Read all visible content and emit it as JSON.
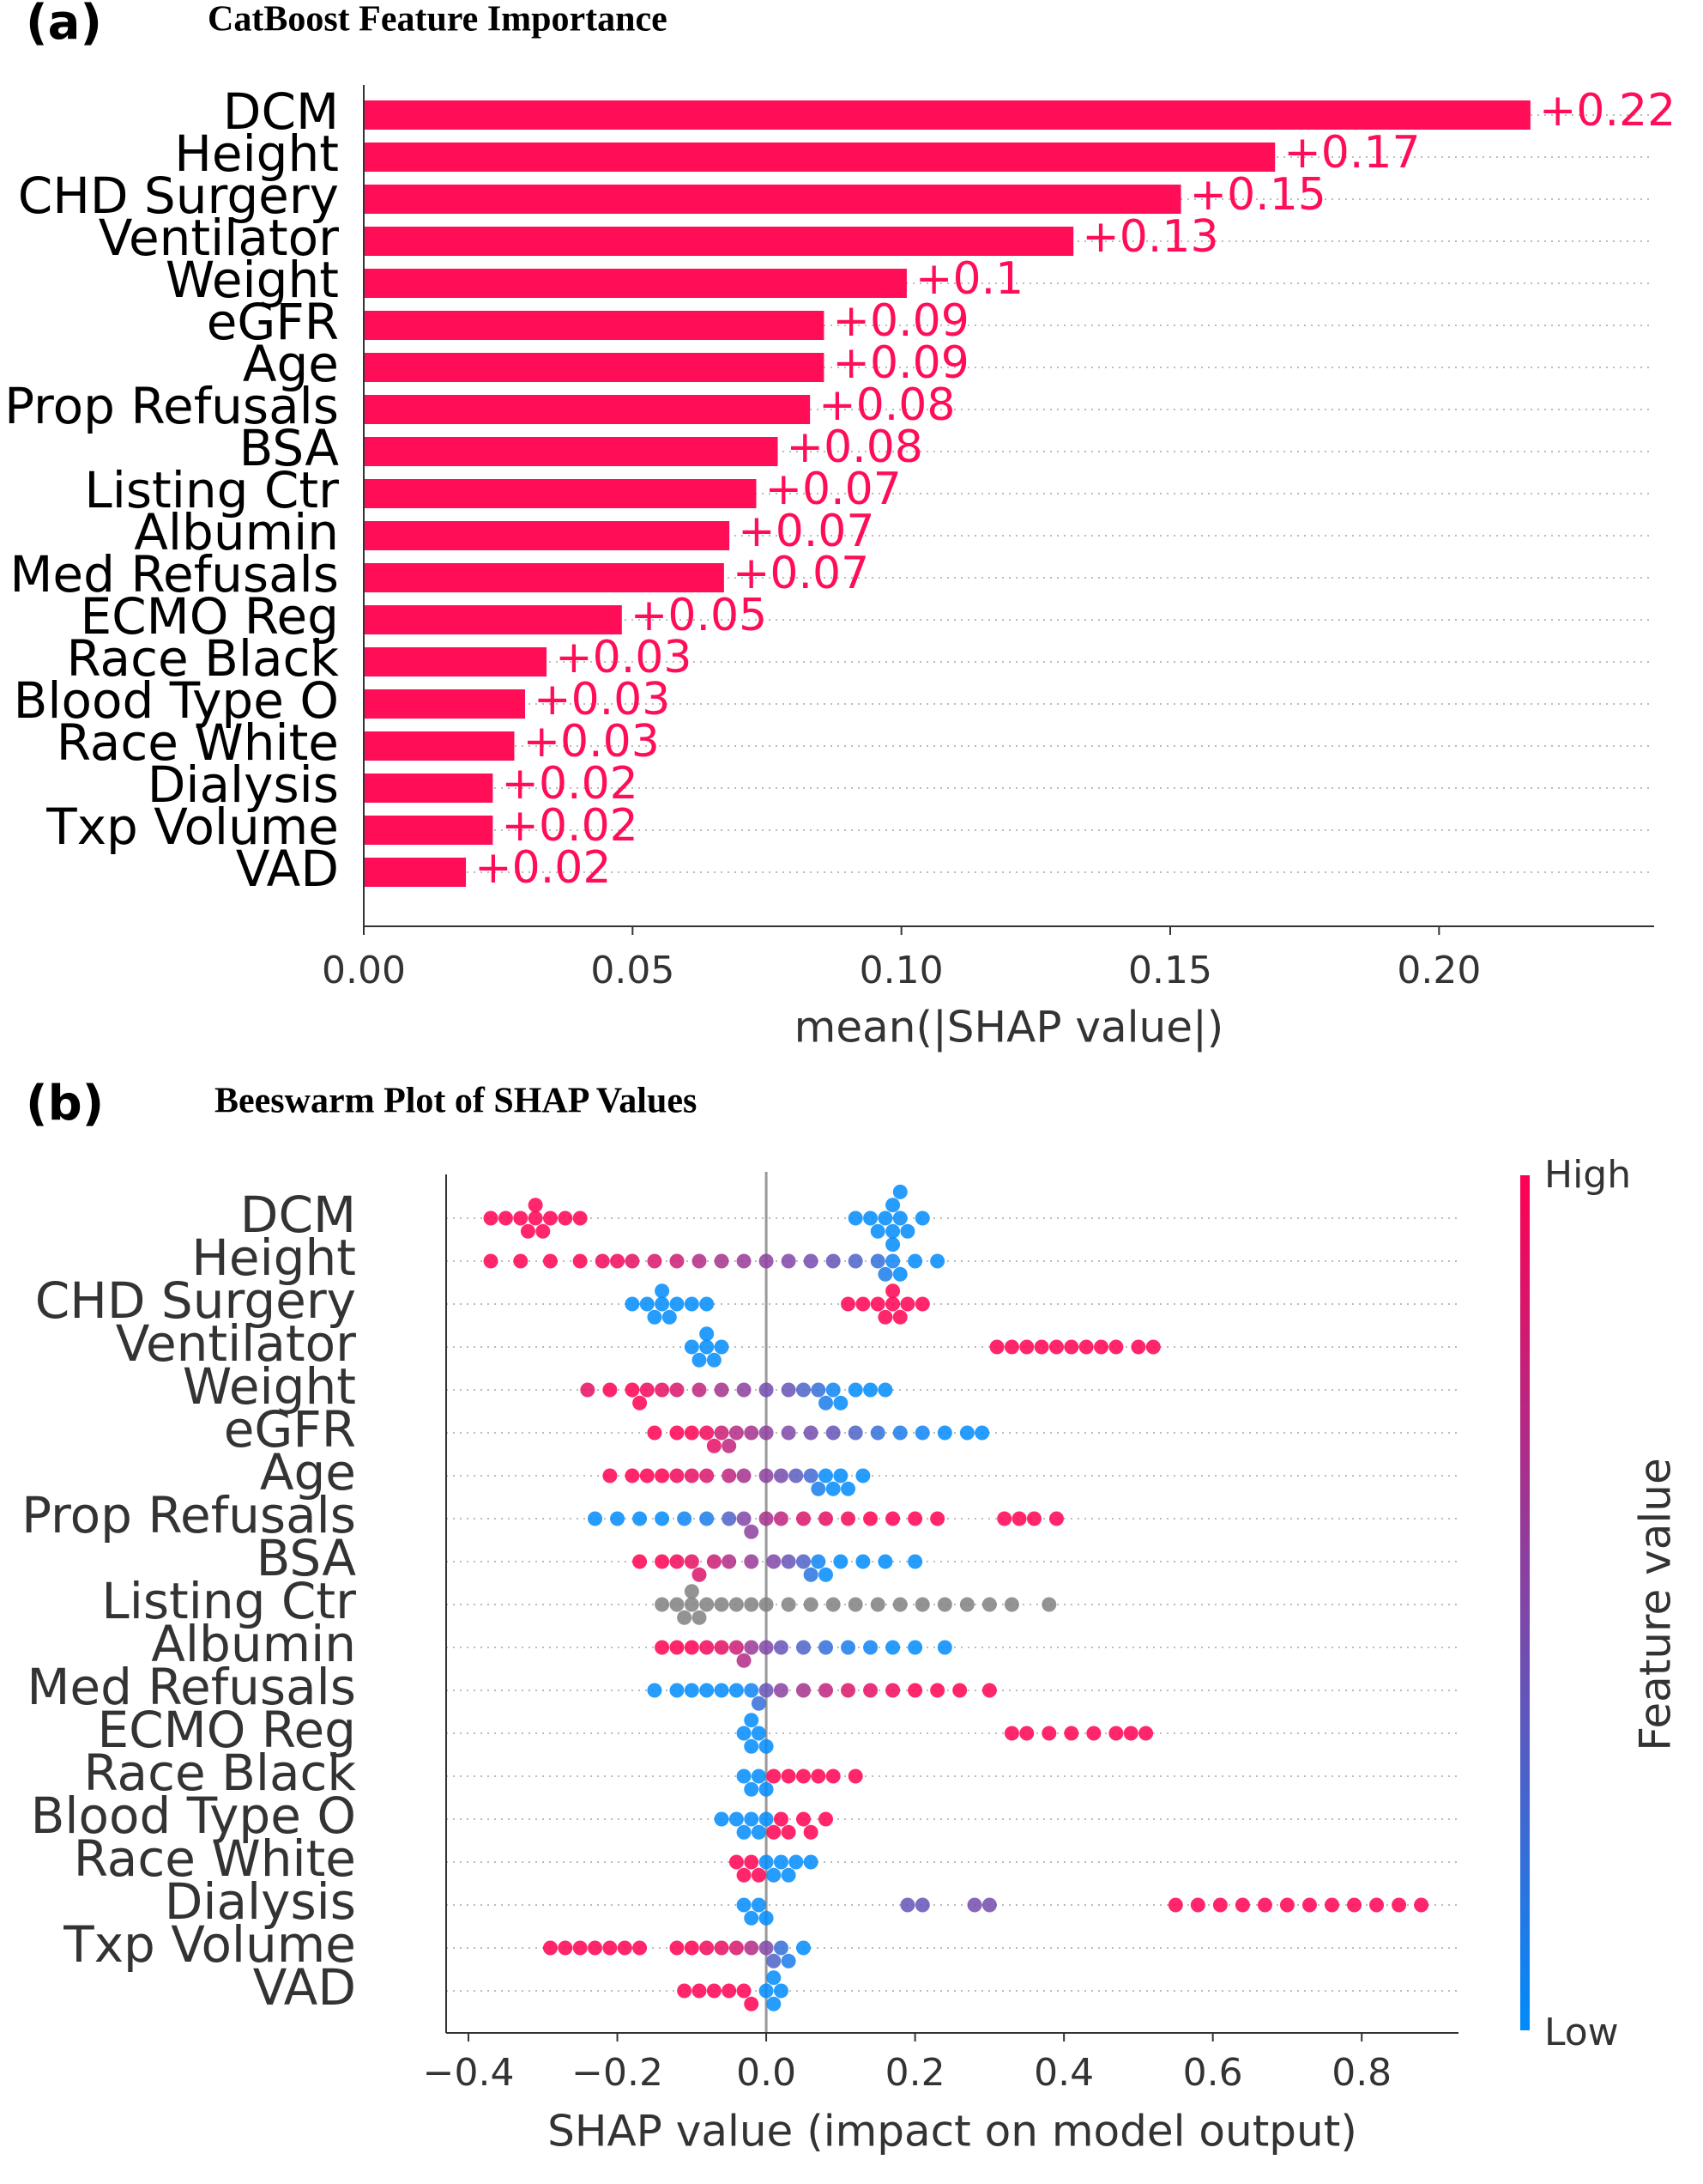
{
  "chart_data": [
    {
      "type": "hbar",
      "panel": "(a)",
      "title": "CatBoost Feature Importance",
      "categories": [
        "DCM",
        "Height",
        "CHD Surgery",
        "Ventilator",
        "Weight",
        "eGFR",
        "Age",
        "Prop Refusals",
        "BSA",
        "Listing Ctr",
        "Albumin",
        "Med Refusals",
        "ECMO Reg",
        "Race Black",
        "Blood Type O",
        "Race White",
        "Dialysis",
        "Txp Volume",
        "VAD"
      ],
      "values": [
        0.217,
        0.1695,
        0.152,
        0.132,
        0.101,
        0.0856,
        0.0856,
        0.083,
        0.077,
        0.073,
        0.068,
        0.067,
        0.048,
        0.034,
        0.03,
        0.028,
        0.024,
        0.024,
        0.019
      ],
      "value_labels": [
        "+0.22",
        "+0.17",
        "+0.15",
        "+0.13",
        "+0.1",
        "+0.09",
        "+0.09",
        "+0.08",
        "+0.08",
        "+0.07",
        "+0.07",
        "+0.07",
        "+0.05",
        "+0.03",
        "+0.03",
        "+0.03",
        "+0.02",
        "+0.02",
        "+0.02"
      ],
      "color": "#ff0d57",
      "xlabel": "mean(|SHAP value|)",
      "xlim": [
        0,
        0.24
      ],
      "xticks": [
        {
          "value": 0,
          "label": "0.00"
        },
        {
          "value": 0.05,
          "label": "0.05"
        },
        {
          "value": 0.1,
          "label": "0.10"
        },
        {
          "value": 0.15,
          "label": "0.15"
        },
        {
          "value": 0.2,
          "label": "0.20"
        }
      ],
      "grid": true
    },
    {
      "type": "beeswarm",
      "panel": "(b)",
      "title": "Beeswarm Plot of SHAP Values",
      "categories": [
        "DCM",
        "Height",
        "CHD Surgery",
        "Ventilator",
        "Weight",
        "eGFR",
        "Age",
        "Prop Refusals",
        "BSA",
        "Listing Ctr",
        "Albumin",
        "Med Refusals",
        "ECMO Reg",
        "Race Black",
        "Blood Type O",
        "Race White",
        "Dialysis",
        "Txp Volume",
        "VAD"
      ],
      "shap_values": [
        [
          -0.37,
          -0.35,
          -0.33,
          -0.32,
          -0.31,
          -0.31,
          -0.3,
          -0.29,
          -0.27,
          -0.25,
          0.12,
          0.14,
          0.15,
          0.16,
          0.17,
          0.17,
          0.17,
          0.18,
          0.18,
          0.19,
          0.21
        ],
        [
          -0.37,
          -0.33,
          -0.29,
          -0.25,
          -0.22,
          -0.2,
          -0.18,
          -0.15,
          -0.12,
          -0.09,
          -0.06,
          -0.03,
          0,
          0.03,
          0.06,
          0.09,
          0.12,
          0.15,
          0.16,
          0.17,
          0.18,
          0.2,
          0.23
        ],
        [
          -0.18,
          -0.16,
          -0.15,
          -0.14,
          -0.14,
          -0.13,
          -0.12,
          -0.1,
          -0.08,
          0.11,
          0.13,
          0.15,
          0.16,
          0.17,
          0.17,
          0.18,
          0.19,
          0.21
        ],
        [
          -0.1,
          -0.09,
          -0.08,
          -0.08,
          -0.07,
          -0.06,
          0.31,
          0.33,
          0.35,
          0.37,
          0.39,
          0.41,
          0.43,
          0.45,
          0.47,
          0.5,
          0.52
        ],
        [
          -0.24,
          -0.21,
          -0.18,
          -0.17,
          -0.16,
          -0.14,
          -0.12,
          -0.09,
          -0.06,
          -0.03,
          0,
          0.03,
          0.05,
          0.07,
          0.08,
          0.09,
          0.1,
          0.12,
          0.14,
          0.16
        ],
        [
          -0.15,
          -0.12,
          -0.1,
          -0.08,
          -0.07,
          -0.06,
          -0.05,
          -0.04,
          -0.02,
          0,
          0.03,
          0.06,
          0.09,
          0.12,
          0.15,
          0.18,
          0.21,
          0.24,
          0.27,
          0.29
        ],
        [
          -0.21,
          -0.18,
          -0.16,
          -0.14,
          -0.12,
          -0.1,
          -0.08,
          -0.05,
          -0.03,
          0,
          0.02,
          0.04,
          0.06,
          0.07,
          0.08,
          0.09,
          0.1,
          0.11,
          0.13
        ],
        [
          -0.23,
          -0.2,
          -0.17,
          -0.14,
          -0.11,
          -0.08,
          -0.05,
          -0.03,
          -0.02,
          0,
          0.02,
          0.05,
          0.08,
          0.11,
          0.14,
          0.17,
          0.2,
          0.23,
          0.32,
          0.34,
          0.36,
          0.39
        ],
        [
          -0.17,
          -0.14,
          -0.12,
          -0.1,
          -0.09,
          -0.07,
          -0.05,
          -0.02,
          0.01,
          0.03,
          0.05,
          0.06,
          0.07,
          0.08,
          0.1,
          0.13,
          0.16,
          0.2
        ],
        [
          -0.14,
          -0.12,
          -0.11,
          -0.1,
          -0.1,
          -0.09,
          -0.08,
          -0.06,
          -0.04,
          -0.02,
          0,
          0.03,
          0.06,
          0.09,
          0.12,
          0.15,
          0.18,
          0.21,
          0.24,
          0.27,
          0.3,
          0.33,
          0.38
        ],
        [
          -0.14,
          -0.12,
          -0.1,
          -0.08,
          -0.06,
          -0.04,
          -0.03,
          -0.02,
          0,
          0.02,
          0.05,
          0.08,
          0.11,
          0.14,
          0.17,
          0.2,
          0.24
        ],
        [
          -0.15,
          -0.12,
          -0.1,
          -0.08,
          -0.06,
          -0.04,
          -0.02,
          -0.01,
          0,
          0.02,
          0.05,
          0.08,
          0.11,
          0.14,
          0.17,
          0.2,
          0.23,
          0.26,
          0.3
        ],
        [
          -0.03,
          -0.02,
          -0.02,
          -0.01,
          0,
          0.33,
          0.35,
          0.38,
          0.41,
          0.44,
          0.47,
          0.49,
          0.51
        ],
        [
          -0.03,
          -0.02,
          -0.01,
          0,
          0.01,
          0.03,
          0.05,
          0.07,
          0.09,
          0.12
        ],
        [
          -0.06,
          -0.04,
          -0.03,
          -0.02,
          -0.01,
          0,
          0.01,
          0.02,
          0.03,
          0.05,
          0.06,
          0.08
        ],
        [
          -0.04,
          -0.03,
          -0.02,
          -0.01,
          0,
          0.01,
          0.02,
          0.03,
          0.04,
          0.06
        ],
        [
          -0.03,
          -0.02,
          -0.01,
          0,
          0.19,
          0.21,
          0.28,
          0.3,
          0.55,
          0.58,
          0.61,
          0.64,
          0.67,
          0.7,
          0.73,
          0.76,
          0.79,
          0.82,
          0.85,
          0.88
        ],
        [
          -0.29,
          -0.27,
          -0.25,
          -0.23,
          -0.21,
          -0.19,
          -0.17,
          -0.12,
          -0.1,
          -0.08,
          -0.06,
          -0.04,
          -0.02,
          0,
          0.01,
          0.02,
          0.03,
          0.05
        ],
        [
          -0.11,
          -0.09,
          -0.07,
          -0.05,
          -0.03,
          -0.02,
          0,
          0.01,
          0.01,
          0.02
        ]
      ],
      "feature_values": [
        [
          1,
          1,
          1,
          1,
          1,
          1,
          1,
          1,
          1,
          1,
          0,
          0,
          0,
          0,
          0,
          0,
          0,
          0,
          0,
          0,
          0
        ],
        [
          1,
          1,
          1,
          1,
          0.95,
          0.95,
          0.9,
          0.85,
          0.8,
          0.7,
          0.65,
          0.6,
          0.55,
          0.5,
          0.45,
          0.4,
          0.3,
          0.2,
          0.1,
          0.05,
          0,
          0,
          0
        ],
        [
          0,
          0,
          0,
          0,
          0,
          0,
          0,
          0,
          0,
          1,
          1,
          1,
          1,
          1,
          1,
          1,
          1,
          1
        ],
        [
          0,
          0,
          0,
          0,
          0,
          0,
          1,
          1,
          1,
          1,
          1,
          1,
          1,
          1,
          1,
          1,
          1
        ],
        [
          0.9,
          1,
          1,
          1,
          0.95,
          0.9,
          0.85,
          0.75,
          0.65,
          0.55,
          0.45,
          0.4,
          0.3,
          0.2,
          0.1,
          0.05,
          0,
          0,
          0,
          0
        ],
        [
          1,
          1,
          1,
          0.95,
          0.9,
          0.8,
          0.75,
          0.7,
          0.65,
          0.55,
          0.5,
          0.45,
          0.4,
          0.3,
          0.2,
          0.1,
          0.05,
          0,
          0,
          0
        ],
        [
          1,
          1,
          1,
          1,
          0.95,
          0.9,
          0.85,
          0.75,
          0.65,
          0.55,
          0.45,
          0.35,
          0.25,
          0.1,
          0,
          0,
          0,
          0,
          0
        ],
        [
          0,
          0,
          0,
          0,
          0.05,
          0.1,
          0.3,
          0.5,
          0.55,
          0.65,
          0.75,
          0.85,
          0.9,
          0.95,
          1,
          1,
          1,
          1,
          1,
          1,
          1,
          1
        ],
        [
          1,
          1,
          0.95,
          0.9,
          0.85,
          0.8,
          0.7,
          0.6,
          0.5,
          0.4,
          0.3,
          0.15,
          0.05,
          0,
          0,
          0,
          0,
          0
        ],
        [
          null,
          null,
          null,
          null,
          null,
          null,
          null,
          null,
          null,
          null,
          null,
          null,
          null,
          null,
          null,
          null,
          null,
          null,
          null,
          null,
          null,
          null,
          null
        ],
        [
          1,
          1,
          1,
          0.95,
          0.9,
          0.8,
          0.7,
          0.6,
          0.5,
          0.4,
          0.3,
          0.2,
          0.1,
          0.05,
          0,
          0,
          0
        ],
        [
          0,
          0,
          0,
          0,
          0,
          0,
          0.05,
          0.2,
          0.4,
          0.55,
          0.65,
          0.75,
          0.85,
          0.9,
          0.95,
          1,
          1,
          1,
          1
        ],
        [
          0,
          0,
          0,
          0,
          0,
          1,
          1,
          1,
          1,
          1,
          1,
          1,
          1
        ],
        [
          0,
          0,
          0,
          0,
          1,
          1,
          1,
          1,
          1,
          1
        ],
        [
          0,
          0,
          0,
          0,
          0,
          0,
          1,
          1,
          1,
          1,
          1,
          1
        ],
        [
          1,
          1,
          1,
          1,
          0,
          0,
          0,
          0,
          0,
          0
        ],
        [
          0,
          0,
          0,
          0,
          0.4,
          0.4,
          0.45,
          0.45,
          1,
          1,
          1,
          1,
          1,
          1,
          1,
          1,
          1,
          1,
          1,
          1
        ],
        [
          1,
          1,
          1,
          1,
          1,
          1,
          1,
          1,
          1,
          0.95,
          0.9,
          0.85,
          0.7,
          0.5,
          0.3,
          0.2,
          0.1,
          0
        ],
        [
          1,
          1,
          1,
          1,
          1,
          1,
          0,
          0,
          0,
          0
        ]
      ],
      "cmap": [
        "#008bfb",
        "#ff0052"
      ],
      "missing_color": "#808080",
      "colorbar": {
        "high_label": "High",
        "low_label": "Low",
        "label": "Feature value"
      },
      "xlabel": "SHAP value (impact on model output)",
      "xlim": [
        -0.43,
        0.93
      ],
      "xticks": [
        {
          "value": -0.4,
          "label": "−0.4"
        },
        {
          "value": -0.2,
          "label": "−0.2"
        },
        {
          "value": 0,
          "label": "0.0"
        },
        0.2,
        0.4,
        0.6,
        0.8
      ],
      "grid": true
    }
  ]
}
